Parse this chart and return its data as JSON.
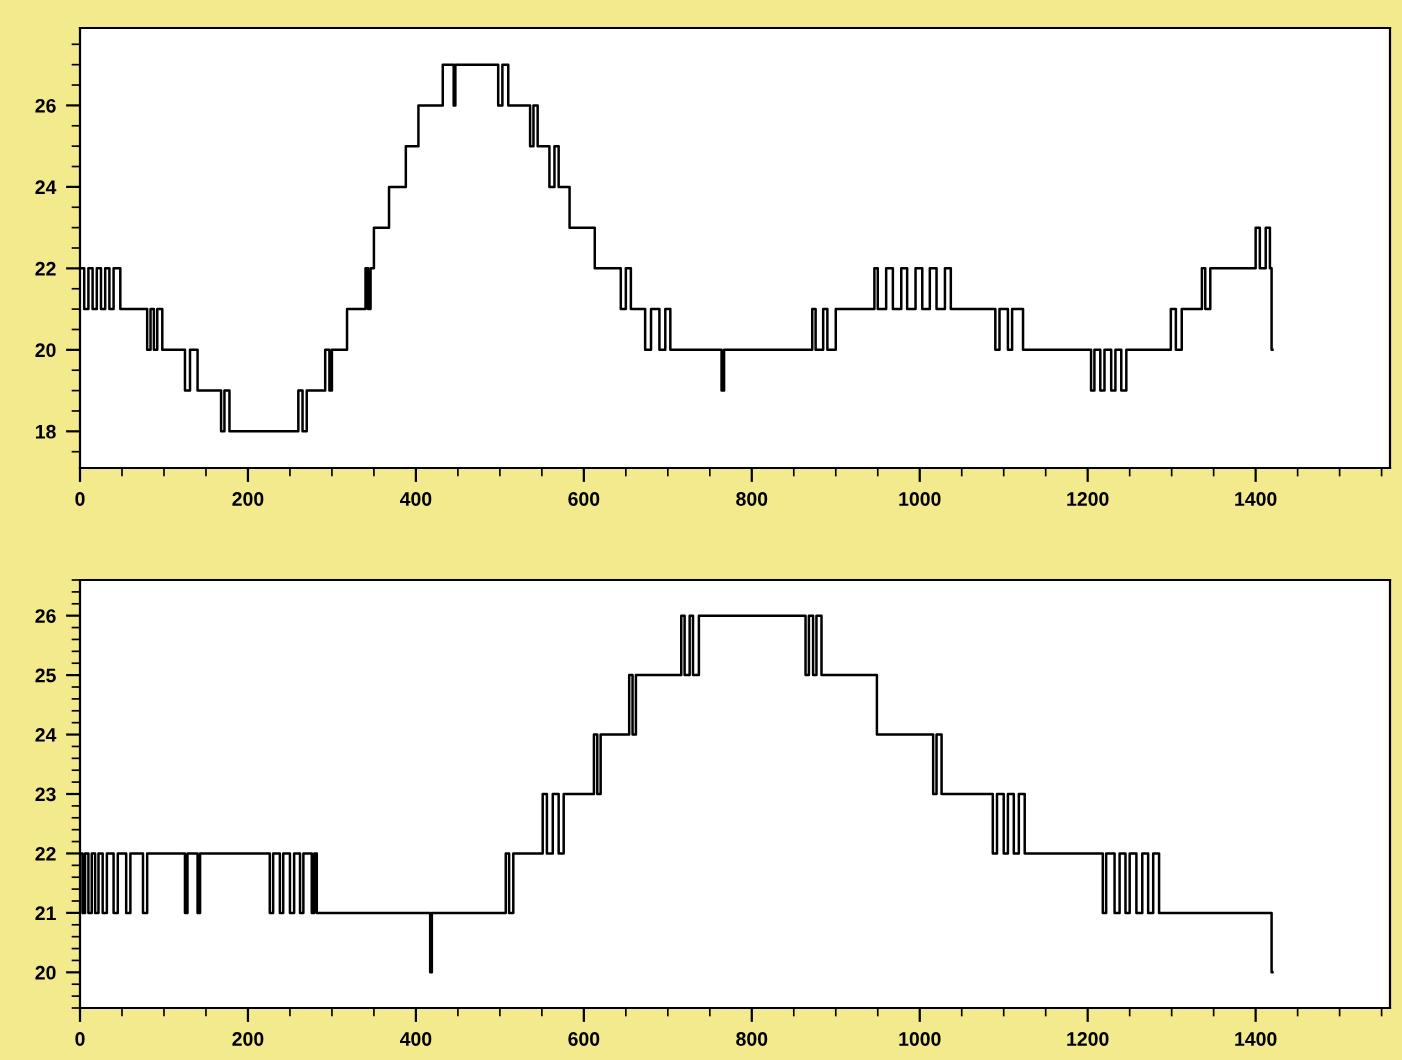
{
  "chart_data": [
    {
      "type": "step",
      "xlim": [
        0,
        1560
      ],
      "ylim": [
        17.1,
        27.9
      ],
      "xticks": [
        0,
        200,
        400,
        600,
        800,
        1000,
        1200,
        1400
      ],
      "yticks": [
        18,
        20,
        22,
        24,
        26
      ],
      "grid": false,
      "series": [
        {
          "color": "#000000",
          "x": [
            0,
            5,
            10,
            15,
            20,
            25,
            30,
            35,
            40,
            48,
            80,
            84,
            88,
            92,
            98,
            125,
            131,
            140,
            168,
            172,
            178,
            260,
            265,
            270,
            292,
            297,
            300,
            318,
            340,
            343,
            346,
            350,
            368,
            388,
            403,
            432,
            445,
            447,
            498,
            503,
            510,
            536,
            540,
            545,
            559,
            565,
            570,
            583,
            613,
            644,
            650,
            656,
            673,
            680,
            690,
            697,
            703,
            764,
            767,
            872,
            876,
            885,
            890,
            900,
            946,
            950,
            960,
            968,
            978,
            985,
            995,
            1003,
            1012,
            1020,
            1030,
            1037,
            1090,
            1095,
            1105,
            1110,
            1123,
            1204,
            1208,
            1215,
            1220,
            1228,
            1233,
            1240,
            1246,
            1299,
            1305,
            1312,
            1336,
            1340,
            1346,
            1400,
            1405,
            1412,
            1417,
            1419,
            1420
          ],
          "values": [
            22,
            21,
            22,
            21,
            22,
            21,
            22,
            21,
            22,
            21,
            20,
            21,
            20,
            21,
            20,
            19,
            20,
            19,
            18,
            19,
            18,
            19,
            18,
            19,
            20,
            19,
            20,
            21,
            22,
            21,
            22,
            23,
            24,
            25,
            26,
            27,
            26,
            27,
            26,
            27,
            26,
            25,
            26,
            25,
            24,
            25,
            24,
            23,
            22,
            21,
            22,
            21,
            20,
            21,
            20,
            21,
            20,
            19,
            20,
            21,
            20,
            21,
            20,
            21,
            22,
            21,
            22,
            21,
            22,
            21,
            22,
            21,
            22,
            21,
            22,
            21,
            20,
            21,
            20,
            21,
            20,
            19,
            20,
            19,
            20,
            19,
            20,
            19,
            20,
            21,
            20,
            21,
            22,
            21,
            22,
            23,
            22,
            23,
            22,
            20,
            20
          ]
        }
      ]
    },
    {
      "type": "step",
      "xlim": [
        0,
        1560
      ],
      "ylim": [
        19.4,
        26.6
      ],
      "xticks": [
        0,
        200,
        400,
        600,
        800,
        1000,
        1200,
        1400
      ],
      "yticks": [
        20,
        21,
        22,
        23,
        24,
        25,
        26
      ],
      "grid": false,
      "series": [
        {
          "color": "#000000",
          "x": [
            0,
            3,
            6,
            10,
            14,
            18,
            22,
            27,
            32,
            40,
            45,
            55,
            60,
            75,
            80,
            125,
            128,
            140,
            143,
            226,
            230,
            238,
            242,
            250,
            255,
            262,
            266,
            276,
            279,
            282,
            417,
            419,
            507,
            511,
            516,
            551,
            556,
            563,
            570,
            576,
            612,
            616,
            620,
            654,
            658,
            662,
            716,
            720,
            726,
            730,
            737,
            864,
            868,
            873,
            877,
            883,
            949,
            1016,
            1020,
            1026,
            1087,
            1092,
            1100,
            1105,
            1112,
            1118,
            1125,
            1218,
            1222,
            1232,
            1238,
            1245,
            1250,
            1258,
            1265,
            1272,
            1278,
            1285,
            1419,
            1420
          ],
          "values": [
            22,
            21,
            22,
            21,
            22,
            21,
            22,
            21,
            22,
            21,
            22,
            21,
            22,
            21,
            22,
            21,
            22,
            21,
            22,
            21,
            22,
            21,
            22,
            21,
            22,
            21,
            22,
            21,
            22,
            21,
            20,
            21,
            22,
            21,
            22,
            23,
            22,
            23,
            22,
            23,
            24,
            23,
            24,
            25,
            24,
            25,
            26,
            25,
            26,
            25,
            26,
            25,
            26,
            25,
            26,
            25,
            24,
            23,
            24,
            23,
            22,
            23,
            22,
            23,
            22,
            23,
            22,
            21,
            22,
            21,
            22,
            21,
            22,
            21,
            22,
            21,
            22,
            21,
            20,
            20
          ]
        }
      ]
    }
  ]
}
